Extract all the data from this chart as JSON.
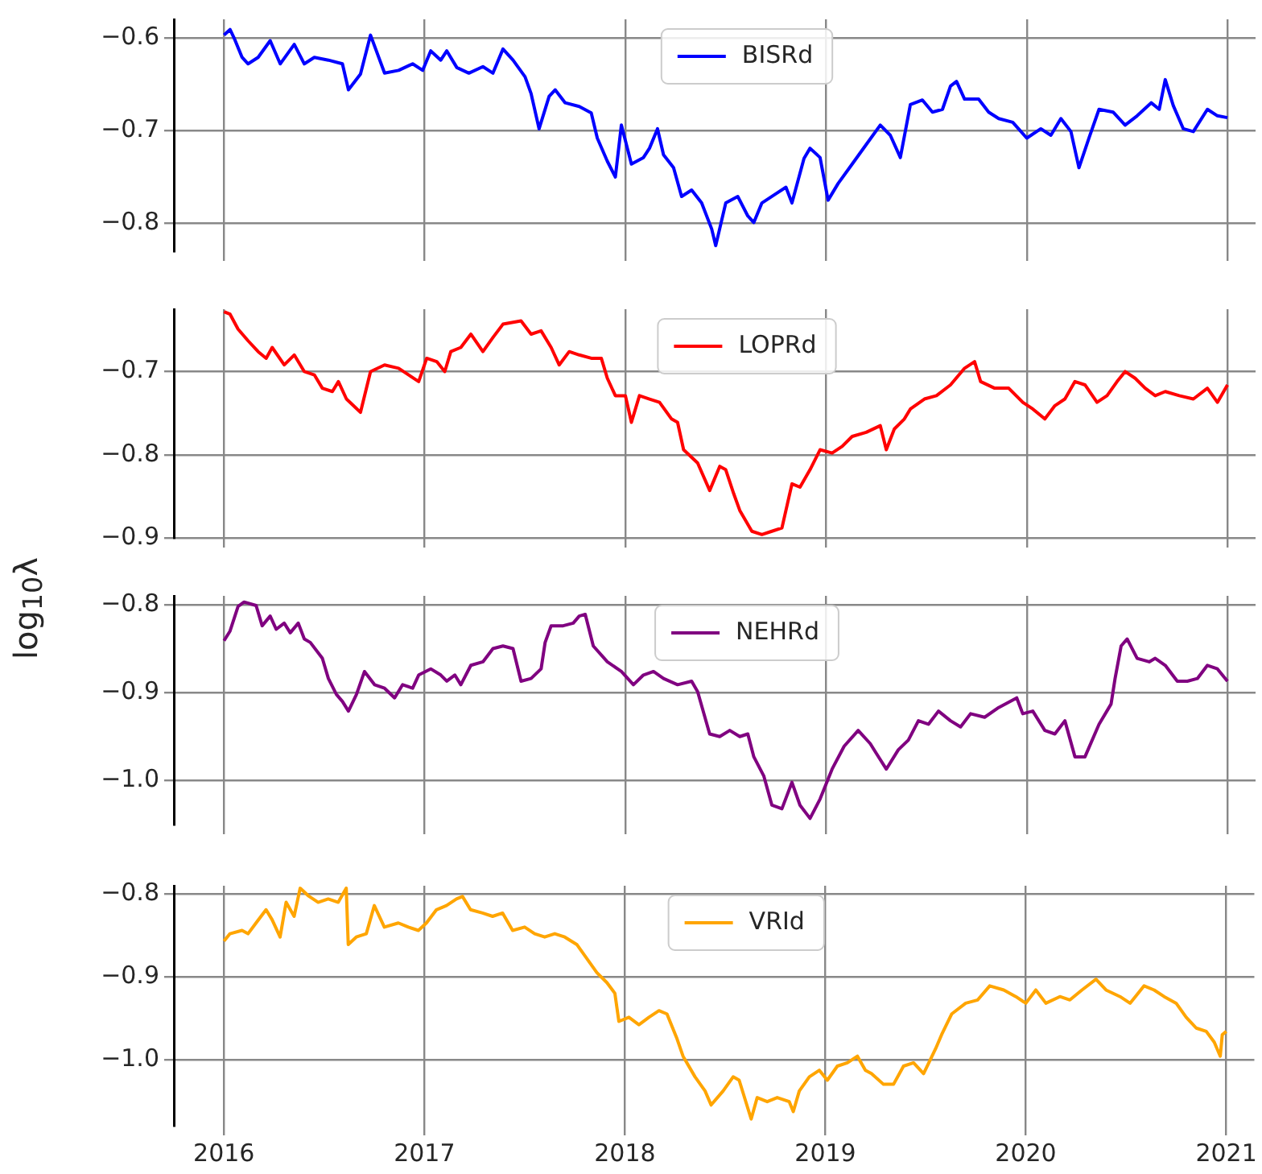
{
  "chart_data": [
    {
      "type": "line",
      "legend": "top",
      "grid": true,
      "tick_labels": "y",
      "marker": "none",
      "line_style": "solid",
      "xlim": [
        2015.75,
        2021.14
      ],
      "xticks": [
        2016,
        2017,
        2018,
        2019,
        2020,
        2021
      ],
      "ylim": [
        -0.83,
        -0.58
      ],
      "yticks": [
        {
          "value": -0.8,
          "label": "−0.8"
        },
        {
          "value": -0.7,
          "label": "−0.7"
        },
        {
          "value": -0.6,
          "label": "−0.6"
        }
      ],
      "x": [
        2016.0,
        2016.03,
        2016.05,
        2016.09,
        2016.12,
        2016.17,
        2016.23,
        2016.28,
        2016.35,
        2016.4,
        2016.45,
        2016.52,
        2016.59,
        2016.62,
        2016.68,
        2016.73,
        2016.8,
        2016.87,
        2016.94,
        2016.99,
        2017.03,
        2017.08,
        2017.11,
        2017.16,
        2017.22,
        2017.29,
        2017.34,
        2017.39,
        2017.44,
        2017.5,
        2017.53,
        2017.57,
        2017.62,
        2017.65,
        2017.7,
        2017.77,
        2017.83,
        2017.86,
        2017.91,
        2017.95,
        2017.98,
        2018.03,
        2018.09,
        2018.12,
        2018.16,
        2018.19,
        2018.24,
        2018.28,
        2018.33,
        2018.38,
        2018.43,
        2018.45,
        2018.5,
        2018.56,
        2018.61,
        2018.64,
        2018.68,
        2018.75,
        2018.8,
        2018.83,
        2018.89,
        2018.92,
        2018.97,
        2019.01,
        2019.06,
        2019.13,
        2019.2,
        2019.27,
        2019.32,
        2019.37,
        2019.42,
        2019.48,
        2019.53,
        2019.58,
        2019.62,
        2019.65,
        2019.69,
        2019.76,
        2019.81,
        2019.86,
        2019.93,
        2020.0,
        2020.07,
        2020.12,
        2020.17,
        2020.22,
        2020.26,
        2020.31,
        2020.36,
        2020.43,
        2020.49,
        2020.55,
        2020.62,
        2020.66,
        2020.69,
        2020.73,
        2020.78,
        2020.83,
        2020.9,
        2020.95,
        2021.0
      ],
      "series": [
        {
          "name": "BISRd",
          "color": "#0000ff",
          "values": [
            -0.597,
            -0.591,
            -0.6,
            -0.621,
            -0.628,
            -0.621,
            -0.603,
            -0.628,
            -0.607,
            -0.628,
            -0.621,
            -0.624,
            -0.628,
            -0.656,
            -0.639,
            -0.597,
            -0.638,
            -0.635,
            -0.628,
            -0.635,
            -0.614,
            -0.624,
            -0.614,
            -0.632,
            -0.638,
            -0.631,
            -0.638,
            -0.612,
            -0.624,
            -0.642,
            -0.66,
            -0.698,
            -0.663,
            -0.656,
            -0.67,
            -0.674,
            -0.681,
            -0.708,
            -0.733,
            -0.75,
            -0.694,
            -0.736,
            -0.729,
            -0.719,
            -0.698,
            -0.726,
            -0.74,
            -0.771,
            -0.764,
            -0.778,
            -0.806,
            -0.824,
            -0.778,
            -0.771,
            -0.792,
            -0.799,
            -0.778,
            -0.768,
            -0.761,
            -0.778,
            -0.73,
            -0.719,
            -0.729,
            -0.775,
            -0.757,
            -0.736,
            -0.715,
            -0.694,
            -0.705,
            -0.729,
            -0.672,
            -0.667,
            -0.68,
            -0.677,
            -0.652,
            -0.647,
            -0.666,
            -0.666,
            -0.68,
            -0.687,
            -0.691,
            -0.708,
            -0.698,
            -0.705,
            -0.687,
            -0.701,
            -0.74,
            -0.708,
            -0.677,
            -0.68,
            -0.694,
            -0.684,
            -0.67,
            -0.677,
            -0.645,
            -0.673,
            -0.698,
            -0.701,
            -0.677,
            -0.684,
            -0.686
          ]
        }
      ]
    },
    {
      "type": "line",
      "legend": "top",
      "grid": true,
      "tick_labels": "y",
      "marker": "none",
      "line_style": "solid",
      "xlim": [
        2015.75,
        2021.14
      ],
      "xticks": [
        2016,
        2017,
        2018,
        2019,
        2020,
        2021
      ],
      "ylim": [
        -0.9,
        -0.625
      ],
      "yticks": [
        {
          "value": -0.9,
          "label": "−0.9"
        },
        {
          "value": -0.8,
          "label": "−0.8"
        },
        {
          "value": -0.7,
          "label": "−0.7"
        }
      ],
      "x": [
        2016.0,
        2016.03,
        2016.07,
        2016.12,
        2016.17,
        2016.21,
        2016.24,
        2016.3,
        2016.35,
        2016.4,
        2016.45,
        2016.49,
        2016.54,
        2016.57,
        2016.61,
        2016.68,
        2016.73,
        2016.8,
        2016.87,
        2016.92,
        2016.97,
        2017.01,
        2017.06,
        2017.1,
        2017.13,
        2017.18,
        2017.23,
        2017.29,
        2017.34,
        2017.39,
        2017.48,
        2017.53,
        2017.58,
        2017.63,
        2017.67,
        2017.72,
        2017.77,
        2017.83,
        2017.88,
        2017.91,
        2017.95,
        2018.0,
        2018.03,
        2018.07,
        2018.12,
        2018.17,
        2018.23,
        2018.26,
        2018.29,
        2018.36,
        2018.42,
        2018.47,
        2018.5,
        2018.54,
        2018.57,
        2018.63,
        2018.68,
        2018.73,
        2018.78,
        2018.83,
        2018.87,
        2018.92,
        2018.97,
        2019.03,
        2019.08,
        2019.13,
        2019.2,
        2019.27,
        2019.3,
        2019.34,
        2019.39,
        2019.42,
        2019.49,
        2019.55,
        2019.62,
        2019.69,
        2019.74,
        2019.77,
        2019.84,
        2019.91,
        2019.98,
        2020.03,
        2020.09,
        2020.14,
        2020.19,
        2020.24,
        2020.29,
        2020.35,
        2020.4,
        2020.45,
        2020.49,
        2020.54,
        2020.59,
        2020.64,
        2020.69,
        2020.76,
        2020.83,
        2020.9,
        2020.95,
        2021.0
      ],
      "series": [
        {
          "name": "LOPRd",
          "color": "#ff0000",
          "values": [
            -0.628,
            -0.631,
            -0.649,
            -0.663,
            -0.676,
            -0.684,
            -0.671,
            -0.692,
            -0.68,
            -0.7,
            -0.704,
            -0.72,
            -0.724,
            -0.712,
            -0.733,
            -0.749,
            -0.7,
            -0.692,
            -0.696,
            -0.704,
            -0.712,
            -0.684,
            -0.688,
            -0.7,
            -0.676,
            -0.671,
            -0.655,
            -0.676,
            -0.659,
            -0.643,
            -0.639,
            -0.655,
            -0.651,
            -0.671,
            -0.692,
            -0.676,
            -0.68,
            -0.684,
            -0.684,
            -0.708,
            -0.729,
            -0.729,
            -0.761,
            -0.729,
            -0.733,
            -0.737,
            -0.757,
            -0.761,
            -0.794,
            -0.81,
            -0.843,
            -0.814,
            -0.818,
            -0.847,
            -0.867,
            -0.892,
            -0.896,
            -0.892,
            -0.888,
            -0.835,
            -0.839,
            -0.818,
            -0.794,
            -0.798,
            -0.79,
            -0.778,
            -0.773,
            -0.765,
            -0.794,
            -0.769,
            -0.757,
            -0.745,
            -0.733,
            -0.729,
            -0.716,
            -0.696,
            -0.688,
            -0.712,
            -0.72,
            -0.72,
            -0.737,
            -0.745,
            -0.757,
            -0.741,
            -0.733,
            -0.712,
            -0.716,
            -0.737,
            -0.729,
            -0.712,
            -0.7,
            -0.708,
            -0.72,
            -0.729,
            -0.724,
            -0.729,
            -0.733,
            -0.72,
            -0.737,
            -0.716
          ]
        }
      ]
    },
    {
      "type": "line",
      "legend": "top",
      "grid": true,
      "tick_labels": "y",
      "marker": "none",
      "line_style": "solid",
      "xlim": [
        2015.75,
        2021.14
      ],
      "xticks": [
        2016,
        2017,
        2018,
        2019,
        2020,
        2021
      ],
      "ylabel": "log$_{10}$λ",
      "ylim": [
        -1.05,
        -0.79
      ],
      "yticks": [
        {
          "value": -1.0,
          "label": "−1.0"
        },
        {
          "value": -0.9,
          "label": "−0.9"
        },
        {
          "value": -0.8,
          "label": "−0.8"
        }
      ],
      "x": [
        2016.0,
        2016.03,
        2016.07,
        2016.1,
        2016.16,
        2016.19,
        2016.23,
        2016.26,
        2016.3,
        2016.33,
        2016.37,
        2016.4,
        2016.43,
        2016.49,
        2016.52,
        2016.56,
        2016.59,
        2016.62,
        2016.66,
        2016.7,
        2016.75,
        2016.8,
        2016.85,
        2016.89,
        2016.94,
        2016.97,
        2017.03,
        2017.08,
        2017.11,
        2017.15,
        2017.18,
        2017.23,
        2017.29,
        2017.34,
        2017.39,
        2017.44,
        2017.48,
        2017.53,
        2017.58,
        2017.6,
        2017.63,
        2017.69,
        2017.74,
        2017.77,
        2017.8,
        2017.84,
        2017.91,
        2017.98,
        2018.04,
        2018.09,
        2018.14,
        2018.19,
        2018.26,
        2018.33,
        2018.36,
        2018.42,
        2018.47,
        2018.52,
        2018.57,
        2018.61,
        2018.64,
        2018.69,
        2018.73,
        2018.78,
        2018.83,
        2018.87,
        2018.92,
        2018.97,
        2019.03,
        2019.09,
        2019.16,
        2019.22,
        2019.25,
        2019.3,
        2019.36,
        2019.41,
        2019.46,
        2019.51,
        2019.56,
        2019.62,
        2019.67,
        2019.72,
        2019.79,
        2019.86,
        2019.95,
        2019.98,
        2020.03,
        2020.09,
        2020.14,
        2020.19,
        2020.24,
        2020.29,
        2020.36,
        2020.42,
        2020.44,
        2020.47,
        2020.5,
        2020.55,
        2020.61,
        2020.64,
        2020.69,
        2020.75,
        2020.8,
        2020.85,
        2020.9,
        2020.95,
        2021.0
      ],
      "series": [
        {
          "name": "NEHRd",
          "color": "#800080",
          "values": [
            -0.841,
            -0.83,
            -0.802,
            -0.797,
            -0.801,
            -0.824,
            -0.813,
            -0.828,
            -0.821,
            -0.832,
            -0.821,
            -0.839,
            -0.843,
            -0.861,
            -0.884,
            -0.902,
            -0.91,
            -0.921,
            -0.902,
            -0.876,
            -0.891,
            -0.895,
            -0.906,
            -0.891,
            -0.895,
            -0.88,
            -0.873,
            -0.88,
            -0.887,
            -0.88,
            -0.891,
            -0.869,
            -0.865,
            -0.85,
            -0.847,
            -0.85,
            -0.887,
            -0.884,
            -0.873,
            -0.843,
            -0.824,
            -0.824,
            -0.821,
            -0.813,
            -0.811,
            -0.847,
            -0.865,
            -0.876,
            -0.891,
            -0.88,
            -0.876,
            -0.884,
            -0.891,
            -0.887,
            -0.899,
            -0.947,
            -0.95,
            -0.943,
            -0.95,
            -0.947,
            -0.973,
            -0.995,
            -1.028,
            -1.032,
            -1.002,
            -1.028,
            -1.043,
            -1.021,
            -0.987,
            -0.961,
            -0.943,
            -0.958,
            -0.969,
            -0.987,
            -0.965,
            -0.954,
            -0.932,
            -0.936,
            -0.921,
            -0.932,
            -0.939,
            -0.924,
            -0.928,
            -0.917,
            -0.906,
            -0.924,
            -0.921,
            -0.943,
            -0.947,
            -0.932,
            -0.973,
            -0.973,
            -0.936,
            -0.913,
            -0.884,
            -0.847,
            -0.839,
            -0.861,
            -0.865,
            -0.861,
            -0.869,
            -0.887,
            -0.887,
            -0.884,
            -0.869,
            -0.873,
            -0.887
          ]
        }
      ]
    },
    {
      "type": "line",
      "legend": "top",
      "grid": true,
      "marker": "none",
      "line_style": "solid",
      "xlim": [
        2015.75,
        2021.14
      ],
      "xticks": [
        2016,
        2017,
        2018,
        2019,
        2020,
        2021
      ],
      "ylim": [
        -1.08,
        -0.79
      ],
      "yticks": [
        {
          "value": -1.0,
          "label": "−1.0"
        },
        {
          "value": -0.9,
          "label": "−0.9"
        },
        {
          "value": -0.8,
          "label": "−0.8"
        }
      ],
      "x": [
        2016.0,
        2016.03,
        2016.09,
        2016.12,
        2016.16,
        2016.21,
        2016.24,
        2016.28,
        2016.31,
        2016.35,
        2016.38,
        2016.42,
        2016.47,
        2016.52,
        2016.57,
        2016.61,
        2016.62,
        2016.66,
        2016.71,
        2016.75,
        2016.8,
        2016.87,
        2016.92,
        2016.97,
        2017.01,
        2017.06,
        2017.11,
        2017.16,
        2017.19,
        2017.23,
        2017.29,
        2017.34,
        2017.39,
        2017.44,
        2017.5,
        2017.55,
        2017.6,
        2017.65,
        2017.7,
        2017.76,
        2017.81,
        2017.86,
        2017.91,
        2017.95,
        2017.97,
        2018.02,
        2018.07,
        2018.12,
        2018.17,
        2018.21,
        2018.26,
        2018.29,
        2018.35,
        2018.4,
        2018.43,
        2018.49,
        2018.54,
        2018.57,
        2018.63,
        2018.66,
        2018.71,
        2018.76,
        2018.82,
        2018.84,
        2018.87,
        2018.92,
        2018.97,
        2019.01,
        2019.06,
        2019.11,
        2019.16,
        2019.2,
        2019.23,
        2019.29,
        2019.34,
        2019.39,
        2019.44,
        2019.49,
        2019.55,
        2019.58,
        2019.63,
        2019.7,
        2019.76,
        2019.82,
        2019.89,
        2019.95,
        2020.0,
        2020.05,
        2020.1,
        2020.17,
        2020.22,
        2020.28,
        2020.35,
        2020.4,
        2020.47,
        2020.52,
        2020.59,
        2020.64,
        2020.69,
        2020.75,
        2020.8,
        2020.85,
        2020.9,
        2020.94,
        2020.97,
        2020.98,
        2021.0
      ],
      "series": [
        {
          "name": "VRId",
          "color": "#ffa500",
          "values": [
            -0.857,
            -0.848,
            -0.844,
            -0.848,
            -0.835,
            -0.819,
            -0.831,
            -0.852,
            -0.81,
            -0.827,
            -0.793,
            -0.802,
            -0.81,
            -0.806,
            -0.81,
            -0.793,
            -0.861,
            -0.852,
            -0.848,
            -0.814,
            -0.84,
            -0.835,
            -0.84,
            -0.844,
            -0.835,
            -0.819,
            -0.814,
            -0.806,
            -0.803,
            -0.819,
            -0.823,
            -0.827,
            -0.823,
            -0.844,
            -0.84,
            -0.848,
            -0.852,
            -0.848,
            -0.852,
            -0.861,
            -0.878,
            -0.895,
            -0.907,
            -0.92,
            -0.954,
            -0.949,
            -0.958,
            -0.949,
            -0.941,
            -0.945,
            -0.975,
            -0.996,
            -1.021,
            -1.038,
            -1.055,
            -1.038,
            -1.021,
            -1.025,
            -1.072,
            -1.046,
            -1.051,
            -1.046,
            -1.051,
            -1.063,
            -1.038,
            -1.021,
            -1.013,
            -1.025,
            -1.008,
            -1.004,
            -0.996,
            -1.013,
            -1.017,
            -1.03,
            -1.03,
            -1.008,
            -1.004,
            -1.017,
            -0.987,
            -0.97,
            -0.945,
            -0.932,
            -0.928,
            -0.911,
            -0.916,
            -0.924,
            -0.932,
            -0.916,
            -0.932,
            -0.924,
            -0.928,
            -0.916,
            -0.903,
            -0.916,
            -0.924,
            -0.932,
            -0.911,
            -0.916,
            -0.924,
            -0.932,
            -0.949,
            -0.962,
            -0.966,
            -0.979,
            -0.996,
            -0.97,
            -0.966
          ]
        }
      ]
    }
  ]
}
